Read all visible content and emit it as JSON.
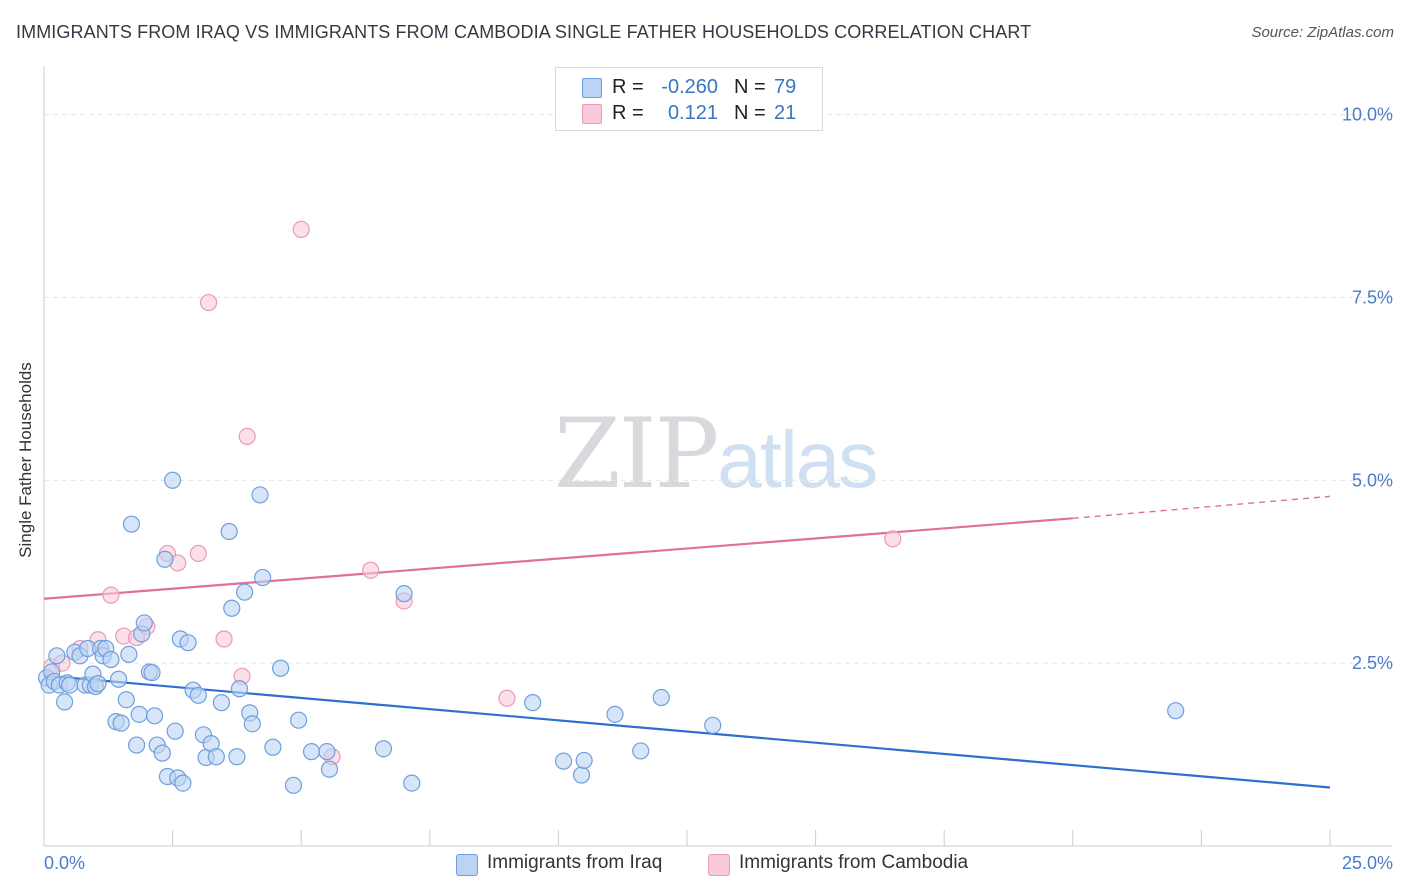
{
  "header": {
    "title": "IMMIGRANTS FROM IRAQ VS IMMIGRANTS FROM CAMBODIA SINGLE FATHER HOUSEHOLDS CORRELATION CHART",
    "source": "Source: ZipAtlas.com"
  },
  "watermark": {
    "zip": "ZIP",
    "atlas": "atlas"
  },
  "stats": {
    "iraq": {
      "r_label": "R =",
      "r_value": "-0.260",
      "n_label": "N =",
      "n_value": "79"
    },
    "cambodia": {
      "r_label": "R =",
      "r_value": "0.121",
      "n_label": "N =",
      "n_value": "21"
    }
  },
  "legend": {
    "iraq_label": "Immigrants from Iraq",
    "cambodia_label": "Immigrants from Cambodia"
  },
  "colors": {
    "iraq_fill": "#bcd4f4",
    "iraq_stroke": "#6f9fdc",
    "iraq_line": "#2f6fcd",
    "cambodia_fill": "#f9cadb",
    "cambodia_stroke": "#ea9ab6",
    "cambodia_line": "#e0709a",
    "axis_label": "#4a7cc9"
  },
  "chart_data": {
    "type": "scatter",
    "title": "IMMIGRANTS FROM IRAQ VS IMMIGRANTS FROM CAMBODIA SINGLE FATHER HOUSEHOLDS CORRELATION CHART",
    "xlabel": "",
    "ylabel": "Single Father Households",
    "xlim": [
      0,
      25
    ],
    "ylim": [
      0,
      10.5
    ],
    "x_tick_labels": [
      "0.0%",
      "25.0%"
    ],
    "y_ticks": [
      2.5,
      5.0,
      7.5,
      10.0
    ],
    "y_tick_labels": [
      "2.5%",
      "5.0%",
      "7.5%",
      "10.0%"
    ],
    "grid": true,
    "series": [
      {
        "name": "Immigrants from Iraq",
        "r": -0.26,
        "n": 79,
        "trend": {
          "x0": 0,
          "y0": 2.33,
          "x1": 25,
          "y1": 0.8
        },
        "points": [
          [
            0.05,
            2.3
          ],
          [
            0.1,
            2.2
          ],
          [
            0.15,
            2.38
          ],
          [
            0.2,
            2.25
          ],
          [
            0.25,
            2.6
          ],
          [
            0.3,
            2.2
          ],
          [
            0.4,
            1.97
          ],
          [
            0.45,
            2.23
          ],
          [
            0.5,
            2.2
          ],
          [
            0.6,
            2.65
          ],
          [
            0.7,
            2.6
          ],
          [
            0.8,
            2.2
          ],
          [
            0.85,
            2.7
          ],
          [
            0.9,
            2.2
          ],
          [
            0.95,
            2.35
          ],
          [
            1.0,
            2.18
          ],
          [
            1.05,
            2.22
          ],
          [
            1.1,
            2.7
          ],
          [
            1.15,
            2.6
          ],
          [
            1.2,
            2.7
          ],
          [
            1.3,
            2.55
          ],
          [
            1.4,
            1.7
          ],
          [
            1.45,
            2.28
          ],
          [
            1.5,
            1.68
          ],
          [
            1.6,
            2.0
          ],
          [
            1.65,
            2.62
          ],
          [
            1.7,
            4.4
          ],
          [
            1.8,
            1.38
          ],
          [
            1.85,
            1.8
          ],
          [
            1.9,
            2.9
          ],
          [
            1.95,
            3.05
          ],
          [
            2.05,
            2.38
          ],
          [
            2.1,
            2.37
          ],
          [
            2.15,
            1.78
          ],
          [
            2.2,
            1.38
          ],
          [
            2.3,
            1.27
          ],
          [
            2.35,
            3.92
          ],
          [
            2.4,
            0.95
          ],
          [
            2.5,
            5.0
          ],
          [
            2.55,
            1.57
          ],
          [
            2.6,
            0.93
          ],
          [
            2.65,
            2.83
          ],
          [
            2.7,
            0.86
          ],
          [
            2.8,
            2.78
          ],
          [
            2.9,
            2.13
          ],
          [
            3.0,
            2.06
          ],
          [
            3.1,
            1.52
          ],
          [
            3.15,
            1.21
          ],
          [
            3.25,
            1.4
          ],
          [
            3.35,
            1.22
          ],
          [
            3.45,
            1.96
          ],
          [
            3.6,
            4.3
          ],
          [
            3.65,
            3.25
          ],
          [
            3.75,
            1.22
          ],
          [
            3.8,
            2.15
          ],
          [
            3.9,
            3.47
          ],
          [
            4.0,
            1.82
          ],
          [
            4.05,
            1.67
          ],
          [
            4.2,
            4.8
          ],
          [
            4.25,
            3.67
          ],
          [
            4.45,
            1.35
          ],
          [
            4.6,
            2.43
          ],
          [
            4.85,
            0.83
          ],
          [
            4.95,
            1.72
          ],
          [
            5.2,
            1.29
          ],
          [
            5.5,
            1.29
          ],
          [
            5.55,
            1.05
          ],
          [
            6.6,
            1.33
          ],
          [
            7.0,
            3.45
          ],
          [
            7.15,
            0.86
          ],
          [
            9.5,
            1.96
          ],
          [
            10.1,
            1.16
          ],
          [
            10.45,
            0.97
          ],
          [
            10.5,
            1.17
          ],
          [
            11.1,
            1.8
          ],
          [
            11.6,
            1.3
          ],
          [
            12.0,
            2.03
          ],
          [
            13.0,
            1.65
          ],
          [
            22.0,
            1.85
          ]
        ]
      },
      {
        "name": "Immigrants from Cambodia",
        "r": 0.121,
        "n": 21,
        "trend": {
          "x0": 0,
          "y0": 3.38,
          "x1": 20,
          "y1": 4.48
        },
        "trend_dashed": {
          "x0": 20,
          "y0": 4.48,
          "x1": 25,
          "y1": 4.78
        },
        "points": [
          [
            0.15,
            2.45
          ],
          [
            0.35,
            2.5
          ],
          [
            0.7,
            2.7
          ],
          [
            1.05,
            2.82
          ],
          [
            1.3,
            3.43
          ],
          [
            1.55,
            2.87
          ],
          [
            1.8,
            2.85
          ],
          [
            2.0,
            3.0
          ],
          [
            2.4,
            4.0
          ],
          [
            2.6,
            3.87
          ],
          [
            3.0,
            4.0
          ],
          [
            3.2,
            7.43
          ],
          [
            3.5,
            2.83
          ],
          [
            3.85,
            2.32
          ],
          [
            3.95,
            5.6
          ],
          [
            5.0,
            8.43
          ],
          [
            5.6,
            1.22
          ],
          [
            6.35,
            3.77
          ],
          [
            7.0,
            3.35
          ],
          [
            9.0,
            2.02
          ],
          [
            16.5,
            4.2
          ]
        ]
      }
    ]
  }
}
